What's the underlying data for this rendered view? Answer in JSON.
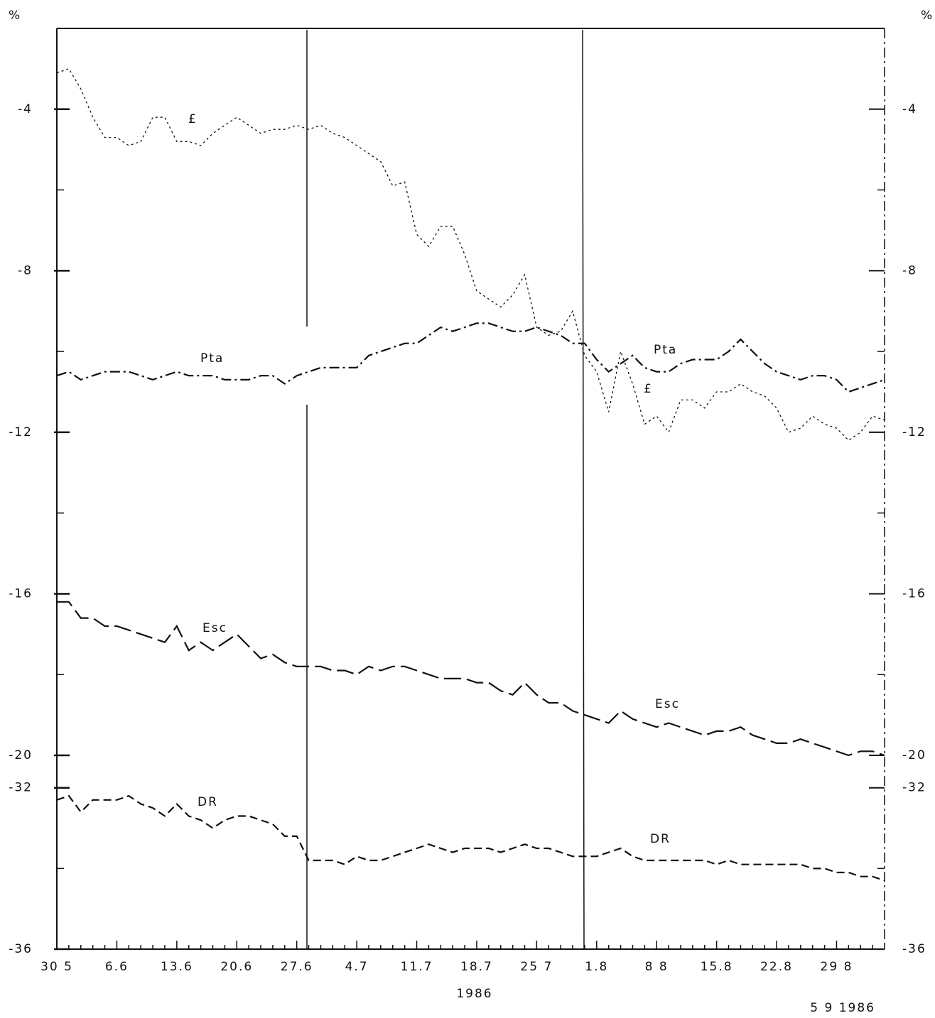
{
  "chart_data": [
    {
      "type": "line",
      "ylabel": "%",
      "y2label": "%",
      "categories": [
        "30 5",
        null,
        null,
        null,
        null,
        "6.6",
        null,
        null,
        null,
        null,
        "13.6",
        null,
        null,
        null,
        null,
        "20.6",
        null,
        null,
        null,
        null,
        "27.6",
        null,
        null,
        null,
        null,
        "4.7",
        null,
        null,
        null,
        null,
        "11.7",
        null,
        null,
        null,
        null,
        "18.7",
        null,
        null,
        null,
        null,
        "25 7",
        null,
        null,
        null,
        null,
        "1.8",
        null,
        null,
        null,
        null,
        "8 8",
        null,
        null,
        null,
        null,
        "15.8",
        null,
        null,
        null,
        null,
        "22.8",
        null,
        null,
        null,
        null,
        "29 8",
        null,
        null,
        null,
        null
      ],
      "xlabel": "1986",
      "ylim": [
        -2,
        -20
      ],
      "yticks": [
        -4,
        -8,
        -12,
        -16,
        -20
      ],
      "minor_yticks": [
        -6,
        -10,
        -14,
        -18
      ],
      "series": [
        {
          "name": "£",
          "color": "#111",
          "dash": "dotted",
          "values": [
            -3.1,
            -3.0,
            -3.5,
            -4.2,
            -4.7,
            -4.7,
            -4.9,
            -4.8,
            -4.2,
            -4.2,
            -4.8,
            -4.8,
            -4.9,
            -4.6,
            -4.4,
            -4.2,
            -4.4,
            -4.6,
            -4.5,
            -4.5,
            -4.4,
            -4.5,
            -4.4,
            -4.6,
            -4.7,
            -4.9,
            -5.1,
            -5.3,
            -5.9,
            -5.8,
            -7.1,
            -7.4,
            -6.9,
            -6.9,
            -7.6,
            -8.5,
            -8.7,
            -8.9,
            -8.6,
            -8.1,
            -9.4,
            -9.6,
            -9.5,
            -9.0,
            -10.1,
            -10.5,
            -11.5,
            -10.0,
            -10.8,
            -11.8,
            -11.6,
            -12.0,
            -11.2,
            -11.2,
            -11.4,
            -11.0,
            -11.0,
            -10.8,
            -11.0,
            -11.1,
            -11.4,
            -12.0,
            -11.9,
            -11.6,
            -11.8,
            -11.9,
            -12.2,
            -12.0,
            -11.6,
            -11.7
          ]
        },
        {
          "name": "Pta",
          "color": "#111",
          "dash": "dashdot",
          "values": [
            -10.6,
            -10.5,
            -10.7,
            -10.6,
            -10.5,
            -10.5,
            -10.5,
            -10.6,
            -10.7,
            -10.6,
            -10.5,
            -10.6,
            -10.6,
            -10.6,
            -10.7,
            -10.7,
            -10.7,
            -10.6,
            -10.6,
            -10.8,
            -10.6,
            -10.5,
            -10.4,
            -10.4,
            -10.4,
            -10.4,
            -10.1,
            -10.0,
            -9.9,
            -9.8,
            -9.8,
            -9.6,
            -9.4,
            -9.5,
            -9.4,
            -9.3,
            -9.3,
            -9.4,
            -9.5,
            -9.5,
            -9.4,
            -9.5,
            -9.6,
            -9.8,
            -9.8,
            -10.2,
            -10.5,
            -10.3,
            -10.1,
            -10.4,
            -10.5,
            -10.5,
            -10.3,
            -10.2,
            -10.2,
            -10.2,
            -10.0,
            -9.7,
            -10.0,
            -10.3,
            -10.5,
            -10.6,
            -10.7,
            -10.6,
            -10.6,
            -10.7,
            -11.0,
            -10.9,
            -10.8,
            -10.7
          ]
        },
        {
          "name": "Esc",
          "color": "#111",
          "dash": "longdash",
          "values": [
            -16.2,
            -16.2,
            -16.6,
            -16.6,
            -16.8,
            -16.8,
            -16.9,
            -17.0,
            -17.1,
            -17.2,
            -16.8,
            -17.4,
            -17.2,
            -17.4,
            -17.2,
            -17.0,
            -17.3,
            -17.6,
            -17.5,
            -17.7,
            -17.8,
            -17.8,
            -17.8,
            -17.9,
            -17.9,
            -18.0,
            -17.8,
            -17.9,
            -17.8,
            -17.8,
            -17.9,
            -18.0,
            -18.1,
            -18.1,
            -18.1,
            -18.2,
            -18.2,
            -18.4,
            -18.5,
            -18.2,
            -18.5,
            -18.7,
            -18.7,
            -18.9,
            -19.0,
            -19.1,
            -19.2,
            -18.9,
            -19.1,
            -19.2,
            -19.3,
            -19.2,
            -19.3,
            -19.4,
            -19.5,
            -19.4,
            -19.4,
            -19.3,
            -19.5,
            -19.6,
            -19.7,
            -19.7,
            -19.6,
            -19.7,
            -19.8,
            -19.9,
            -20.0,
            -19.9,
            -19.9,
            -20.0
          ]
        }
      ]
    },
    {
      "type": "line",
      "ylim": [
        -31.6,
        -36
      ],
      "yticks": [
        -32,
        -36
      ],
      "minor_yticks": [
        -34
      ],
      "series": [
        {
          "name": "DR",
          "color": "#111",
          "dash": "dashed",
          "values": [
            -32.3,
            -32.2,
            -32.6,
            -32.3,
            -32.3,
            -32.3,
            -32.2,
            -32.4,
            -32.5,
            -32.7,
            -32.4,
            -32.7,
            -32.8,
            -33.0,
            -32.8,
            -32.7,
            -32.7,
            -32.8,
            -32.9,
            -33.2,
            -33.2,
            -33.8,
            -33.8,
            -33.8,
            -33.9,
            -33.7,
            -33.8,
            -33.8,
            -33.7,
            -33.6,
            -33.5,
            -33.4,
            -33.5,
            -33.6,
            -33.5,
            -33.5,
            -33.5,
            -33.6,
            -33.5,
            -33.4,
            -33.5,
            -33.5,
            -33.6,
            -33.7,
            -33.7,
            -33.7,
            -33.6,
            -33.5,
            -33.7,
            -33.8,
            -33.8,
            -33.8,
            -33.8,
            -33.8,
            -33.8,
            -33.9,
            -33.8,
            -33.9,
            -33.9,
            -33.9,
            -33.9,
            -33.9,
            -33.9,
            -34.0,
            -34.0,
            -34.1,
            -34.1,
            -34.2,
            -34.2,
            -34.3
          ]
        }
      ]
    }
  ],
  "footnote": "5 9 1986"
}
